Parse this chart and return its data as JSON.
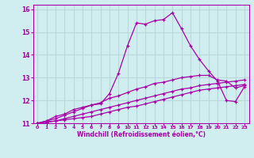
{
  "xlabel": "Windchill (Refroidissement éolien,°C)",
  "bg_color": "#d0eef0",
  "line_color": "#aa00aa",
  "grid_color": "#b8d8dc",
  "xlim": [
    -0.5,
    23.5
  ],
  "ylim": [
    11,
    16.2
  ],
  "yticks": [
    11,
    12,
    13,
    14,
    15,
    16
  ],
  "xticks": [
    0,
    1,
    2,
    3,
    4,
    5,
    6,
    7,
    8,
    9,
    10,
    11,
    12,
    13,
    14,
    15,
    16,
    17,
    18,
    19,
    20,
    21,
    22,
    23
  ],
  "series": [
    [
      11.0,
      11.1,
      11.3,
      11.4,
      11.6,
      11.7,
      11.8,
      11.85,
      12.3,
      13.2,
      14.4,
      15.4,
      15.35,
      15.5,
      15.55,
      15.85,
      15.15,
      14.4,
      13.8,
      13.3,
      12.85,
      12.0,
      11.95,
      12.6
    ],
    [
      11.0,
      11.05,
      11.1,
      11.15,
      11.2,
      11.25,
      11.3,
      11.4,
      11.5,
      11.6,
      11.7,
      11.75,
      11.85,
      11.95,
      12.05,
      12.15,
      12.25,
      12.35,
      12.45,
      12.5,
      12.55,
      12.6,
      12.65,
      12.7
    ],
    [
      11.0,
      11.05,
      11.1,
      11.2,
      11.3,
      11.4,
      11.5,
      11.6,
      11.7,
      11.8,
      11.9,
      12.0,
      12.1,
      12.2,
      12.3,
      12.4,
      12.5,
      12.55,
      12.65,
      12.7,
      12.75,
      12.8,
      12.85,
      12.9
    ],
    [
      11.0,
      11.1,
      11.2,
      11.35,
      11.5,
      11.65,
      11.8,
      11.9,
      12.1,
      12.2,
      12.35,
      12.5,
      12.6,
      12.75,
      12.8,
      12.9,
      13.0,
      13.05,
      13.1,
      13.1,
      12.9,
      12.85,
      12.55,
      12.65
    ]
  ]
}
